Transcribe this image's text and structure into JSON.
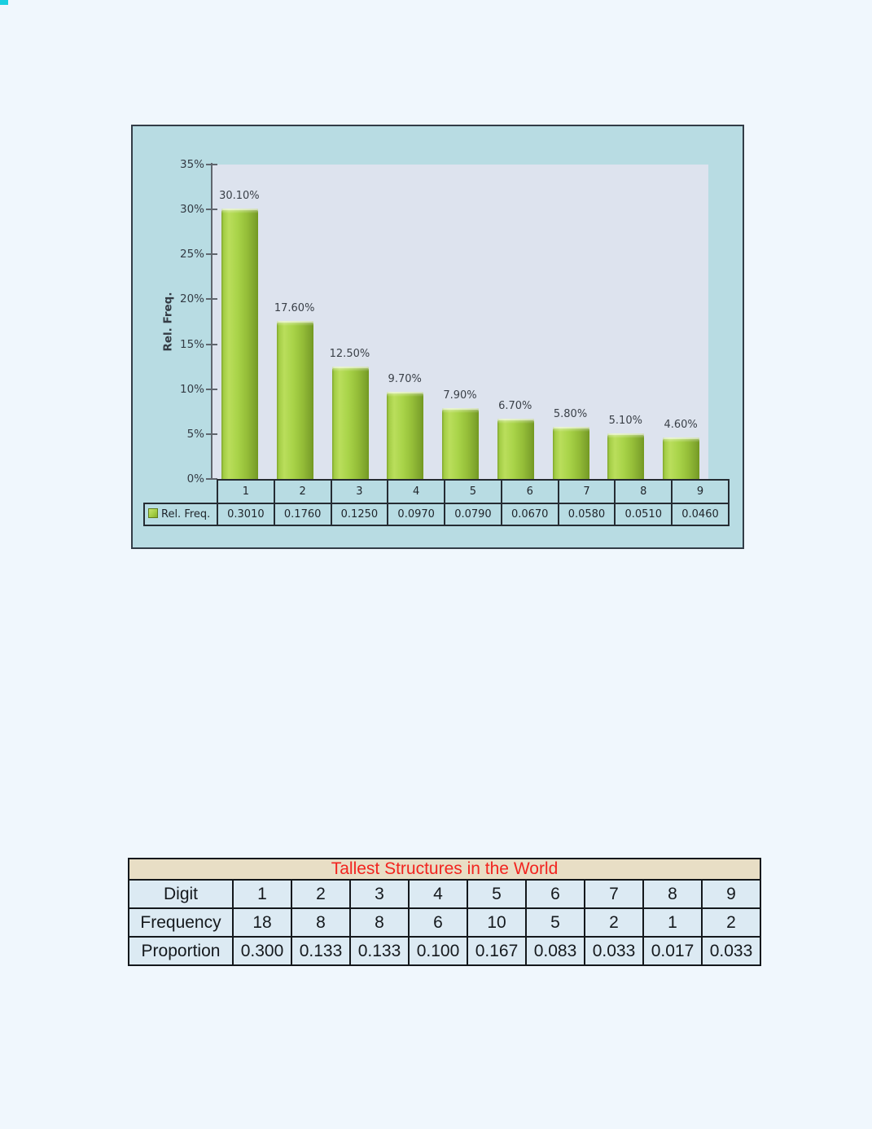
{
  "page": {
    "background": "#f0f7fd",
    "corner_mark_color": "#19cfe0"
  },
  "chart": {
    "y_axis_title": "Rel. Freq.",
    "y_tick_labels": [
      "35%",
      "30%",
      "25%",
      "20%",
      "15%",
      "10%",
      "5%",
      "0%"
    ],
    "data_labels": [
      "30.10%",
      "17.60%",
      "12.50%",
      "9.70%",
      "7.90%",
      "6.70%",
      "5.80%",
      "5.10%",
      "4.60%"
    ],
    "legend_label": "Rel. Freq.",
    "legend_icon": "green-square-swatch",
    "colors": {
      "chart_background": "#b8dce3",
      "plot_background": "#dde3ee",
      "bar_green_light": "#bade5c",
      "bar_green_main": "#a3cd45",
      "bar_green_dark": "#7da32c",
      "axis": "#60666e",
      "frame_border": "#333d47",
      "label_text": "#343b44"
    }
  },
  "chart_data": {
    "type": "bar",
    "categories": [
      "1",
      "2",
      "3",
      "4",
      "5",
      "6",
      "7",
      "8",
      "9"
    ],
    "values": [
      30.1,
      17.6,
      12.5,
      9.7,
      7.9,
      6.7,
      5.8,
      5.1,
      4.6
    ],
    "value_unit": "%",
    "series_name": "Rel. Freq.",
    "table_values": [
      "0.3010",
      "0.1760",
      "0.1250",
      "0.0970",
      "0.0790",
      "0.0670",
      "0.0580",
      "0.0510",
      "0.0460"
    ],
    "title": "",
    "xlabel": "",
    "ylabel": "Rel. Freq.",
    "ylim": [
      0,
      35
    ],
    "grid": false,
    "legend_position": "data-table-left"
  },
  "structures_table": {
    "title": "Tallest Structures in the World",
    "title_color": "#f2241f",
    "title_background": "#e8dec5",
    "cell_background": "#dceaf3",
    "rows": [
      {
        "label": "Digit",
        "values": [
          "1",
          "2",
          "3",
          "4",
          "5",
          "6",
          "7",
          "8",
          "9"
        ]
      },
      {
        "label": "Frequency",
        "values": [
          "18",
          "8",
          "8",
          "6",
          "10",
          "5",
          "2",
          "1",
          "2"
        ]
      },
      {
        "label": "Proportion",
        "values": [
          "0.300",
          "0.133",
          "0.133",
          "0.100",
          "0.167",
          "0.083",
          "0.033",
          "0.017",
          "0.033"
        ]
      }
    ]
  }
}
